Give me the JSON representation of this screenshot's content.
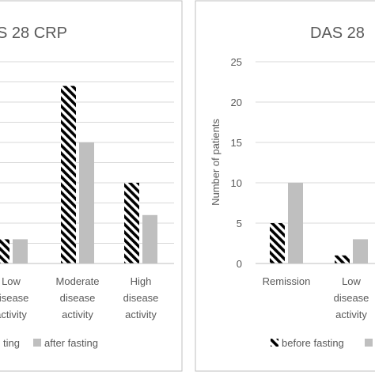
{
  "colors": {
    "before_stroke": "#000000",
    "before_bg": "#ffffff",
    "after_fill": "#bfbfbf",
    "grid": "#d9d9d9",
    "text": "#595959",
    "border": "#bfbfbf"
  },
  "chart_data": [
    {
      "type": "bar",
      "title": "S 28 CRP",
      "xlabel": "",
      "ylabel": "",
      "ylim": [
        0,
        25
      ],
      "categories": [
        [
          "",
          "",
          ""
        ],
        [
          "Low",
          "disease",
          "activity"
        ],
        [
          "Moderate",
          "disease",
          "activity"
        ],
        [
          "High",
          "disease",
          "activity"
        ]
      ],
      "series": [
        {
          "name": "before fasting",
          "values": [
            null,
            3,
            22,
            10
          ]
        },
        {
          "name": "after fasting",
          "values": [
            null,
            3,
            15,
            6
          ]
        }
      ],
      "grid": true,
      "legend": {
        "position": "bottom",
        "labels": [
          "ting",
          "after fasting"
        ]
      }
    },
    {
      "type": "bar",
      "title": "DAS 28",
      "xlabel": "",
      "ylabel": "Number of patients",
      "ylim": [
        0,
        25
      ],
      "yticks": [
        "0",
        "5",
        "10",
        "15",
        "20",
        "25"
      ],
      "categories": [
        [
          "Remission"
        ],
        [
          "Low",
          "disease",
          "activity"
        ]
      ],
      "series": [
        {
          "name": "before fasting",
          "values": [
            5,
            1
          ]
        },
        {
          "name": "after fasting",
          "values": [
            10,
            3
          ]
        }
      ],
      "grid": true,
      "legend": {
        "position": "bottom",
        "labels": [
          "before fasting",
          ""
        ]
      }
    }
  ]
}
